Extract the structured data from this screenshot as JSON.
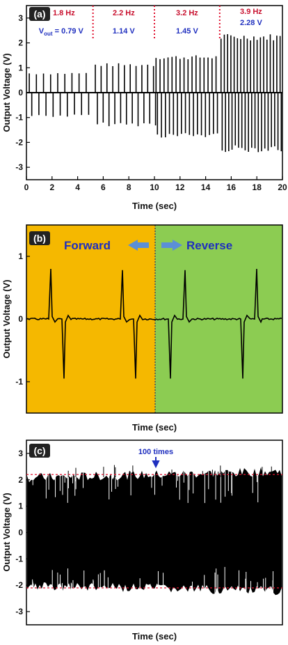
{
  "colors": {
    "freq_text": "#c8102e",
    "vout_text": "#1f2fbf",
    "divider": "#e0102e",
    "forward_bg": "#f5b800",
    "reverse_bg": "#8ccc52",
    "arrow": "#5b8fd6",
    "direction_text": "#1f2fbf",
    "signal": "#000000",
    "ref_line": "#e0102e",
    "annotation": "#1f2fbf",
    "tag_bg": "#222222"
  },
  "chart_data": [
    {
      "panel": "(a)",
      "type": "line",
      "xlabel": "Time (sec)",
      "ylabel": "Output Voltage (V)",
      "xlim": [
        0,
        20
      ],
      "ylim": [
        -3.5,
        3.5
      ],
      "xticks": [
        "0",
        "2",
        "4",
        "6",
        "8",
        "10",
        "12",
        "14",
        "16",
        "18",
        "20"
      ],
      "yticks": [
        "3",
        "2",
        "1",
        "0",
        "-1",
        "-2",
        "-3"
      ],
      "grid": false,
      "segments": [
        {
          "freq_label": "1.8 Hz",
          "vout_label": "0.79 V",
          "t_start": 0,
          "t_end": 5.2,
          "freq_hz": 1.8,
          "peak_pos": 0.79,
          "peak_neg": -0.95
        },
        {
          "freq_label": "2.2 Hz",
          "vout_label": "1.14 V",
          "t_start": 5.2,
          "t_end": 10.0,
          "freq_hz": 2.2,
          "peak_pos": 1.14,
          "peak_neg": -1.3
        },
        {
          "freq_label": "3.2 Hz",
          "vout_label": "1.45 V",
          "t_start": 10.0,
          "t_end": 15.1,
          "freq_hz": 3.2,
          "peak_pos": 1.45,
          "peak_neg": -1.75
        },
        {
          "freq_label": "3.9 Hz",
          "vout_label": "2.28 V",
          "t_start": 15.1,
          "t_end": 20.0,
          "freq_hz": 3.9,
          "peak_pos": 2.28,
          "peak_neg": -2.3
        }
      ],
      "vout_symbol": "V",
      "vout_subscript": "out",
      "vout_eq": " = "
    },
    {
      "panel": "(b)",
      "type": "line",
      "xlabel": "Time (sec)",
      "ylabel": "Output Voltage (V)",
      "ylim": [
        -1.5,
        1.5
      ],
      "yticks": [
        "1",
        "0",
        "-1"
      ],
      "forward_label": "Forward",
      "reverse_label": "Reverse",
      "pulses": [
        {
          "direction": "forward",
          "pos_peak": 0.8,
          "neg_peak": -0.95
        },
        {
          "direction": "forward",
          "pos_peak": 0.78,
          "neg_peak": -0.95
        },
        {
          "direction": "reverse",
          "pos_peak": 0.78,
          "neg_peak": -0.95
        },
        {
          "direction": "reverse",
          "pos_peak": 0.8,
          "neg_peak": -0.95
        }
      ]
    },
    {
      "panel": "(c)",
      "type": "area",
      "xlabel": "Time (sec)",
      "ylabel": "Output Voltage (V)",
      "ylim": [
        -3.5,
        3.5
      ],
      "yticks": [
        "3",
        "2",
        "1",
        "0",
        "-1",
        "-2",
        "-3"
      ],
      "annotation": "100 times",
      "ref_lines": [
        2.2,
        -2.1
      ],
      "envelope": {
        "upper_min": 1.8,
        "upper_max": 2.5,
        "lower_min": -2.4,
        "lower_max": -1.6
      }
    }
  ]
}
